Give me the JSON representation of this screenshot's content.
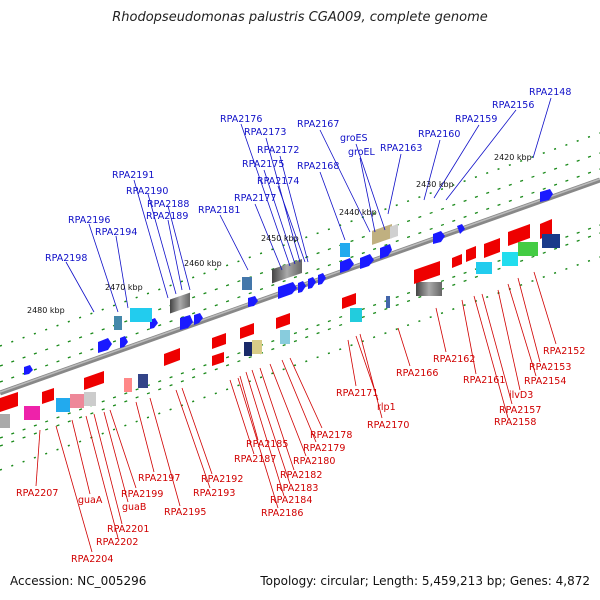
{
  "title": "Rhodopseudomonas palustris CGA009, complete genome",
  "footer": {
    "accession": "Accession: NC_005296",
    "topology": "Topology: circular; Length: 5,459,213 bp; Genes: 4,872"
  },
  "colors": {
    "forward_label": "#1010c8",
    "reverse_label": "#d00000",
    "backbone": "#777777",
    "tick_green": "#1a8a1a"
  },
  "scale_labels": [
    "2420 kbp",
    "2430 kbp",
    "2440 kbp",
    "2450 kbp",
    "2460 kbp",
    "2470 kbp",
    "2480 kbp"
  ],
  "top_labels": [
    "RPA2148",
    "RPA2156",
    "RPA2159",
    "RPA2160",
    "RPA2163",
    "groEL",
    "groES",
    "RPA2167",
    "RPA2168",
    "RPA2172",
    "RPA2173",
    "RPA2174",
    "RPA2175",
    "RPA2176",
    "RPA2177",
    "RPA2181",
    "RPA2188",
    "RPA2189",
    "RPA2190",
    "RPA2191",
    "RPA2194",
    "RPA2196",
    "RPA2198"
  ],
  "bottom_labels": [
    "RPA2152",
    "RPA2153",
    "RPA2154",
    "ilvD3",
    "RPA2157",
    "RPA2158",
    "RPA2161",
    "RPA2162",
    "RPA2166",
    "RPA2170",
    "rlp1",
    "RPA2171",
    "RPA2178",
    "RPA2179",
    "RPA2180",
    "RPA2182",
    "RPA2183",
    "RPA2184",
    "RPA2185",
    "RPA2186",
    "RPA2187",
    "RPA2192",
    "RPA2193",
    "RPA2195",
    "RPA2197",
    "RPA2199",
    "guaB",
    "RPA2201",
    "RPA2202",
    "guaA",
    "RPA2204",
    "RPA2207"
  ]
}
